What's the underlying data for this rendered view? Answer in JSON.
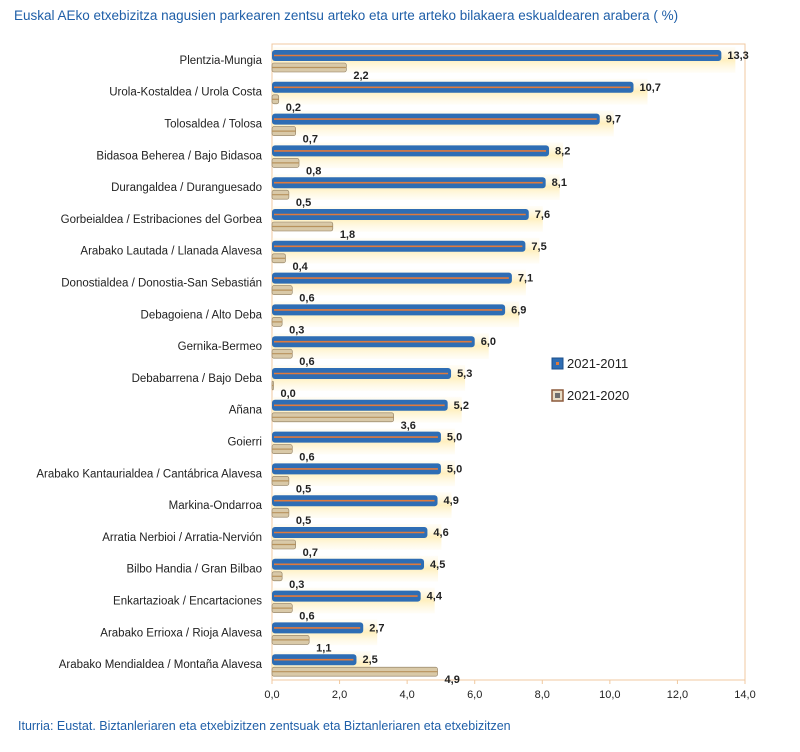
{
  "chart_data": {
    "type": "bar",
    "orientation": "horizontal",
    "title": "Euskal AEko etxebizitza nagusien parkearen zentsu arteko eta urte arteko bilakaera eskualdearen arabera ( %)",
    "source": "Iturria: Eustat. Biztanleriaren eta etxebizitzen zentsuak eta Biztanleriaren eta etxebizitzen",
    "categories": [
      "Plentzia-Mungia",
      "Urola-Kostaldea / Urola Costa",
      "Tolosaldea / Tolosa",
      "Bidasoa Beherea / Bajo Bidasoa",
      "Durangaldea / Duranguesado",
      "Gorbeialdea / Estribaciones del Gorbea",
      "Arabako Lautada / Llanada Alavesa",
      "Donostialdea / Donostia-San Sebastián",
      "Debagoiena / Alto Deba",
      "Gernika-Bermeo",
      "Debabarrena / Bajo Deba",
      "Añana",
      "Goierri",
      "Arabako Kantaurialdea / Cantábrica Alavesa",
      "Markina-Ondarroa",
      "Arratia Nerbioi / Arratia-Nervión",
      "Bilbo Handia / Gran Bilbao",
      "Enkartazioak / Encartaciones",
      "Arabako Errioxa / Rioja Alavesa",
      "Arabako Mendialdea / Montaña Alavesa"
    ],
    "series": [
      {
        "name": "2021-2011",
        "color": "#2e6db4",
        "values": [
          13.3,
          10.7,
          9.7,
          8.2,
          8.1,
          7.6,
          7.5,
          7.1,
          6.9,
          6.0,
          5.3,
          5.2,
          5.0,
          5.0,
          4.9,
          4.6,
          4.5,
          4.4,
          2.7,
          2.5
        ],
        "labels": [
          "13,3",
          "10,7",
          "9,7",
          "8,2",
          "8,1",
          "7,6",
          "7,5",
          "7,1",
          "6,9",
          "6,0",
          "5,3",
          "5,2",
          "5,0",
          "5,0",
          "4,9",
          "4,6",
          "4,5",
          "4,4",
          "2,7",
          "2,5"
        ]
      },
      {
        "name": "2021-2020",
        "color": "#d9c9a8",
        "values": [
          2.2,
          0.2,
          0.7,
          0.8,
          0.5,
          1.8,
          0.4,
          0.6,
          0.3,
          0.6,
          0.0,
          3.6,
          0.6,
          0.5,
          0.5,
          0.7,
          0.3,
          0.6,
          1.1,
          4.9
        ],
        "labels": [
          "2,2",
          "0,2",
          "0,7",
          "0,8",
          "0,5",
          "1,8",
          "0,4",
          "0,6",
          "0,3",
          "0,6",
          "0,0",
          "3,6",
          "0,6",
          "0,5",
          "0,5",
          "0,7",
          "0,3",
          "0,6",
          "1,1",
          "4,9"
        ]
      }
    ],
    "xlim": [
      0,
      14
    ],
    "xticks": [
      0,
      2,
      4,
      6,
      8,
      10,
      12,
      14
    ],
    "xtick_labels": [
      "0,0",
      "2,0",
      "4,0",
      "6,0",
      "8,0",
      "10,0",
      "12,0",
      "14,0"
    ],
    "xlabel": "",
    "ylabel": "",
    "legend_position": "right-middle",
    "grid": false
  }
}
